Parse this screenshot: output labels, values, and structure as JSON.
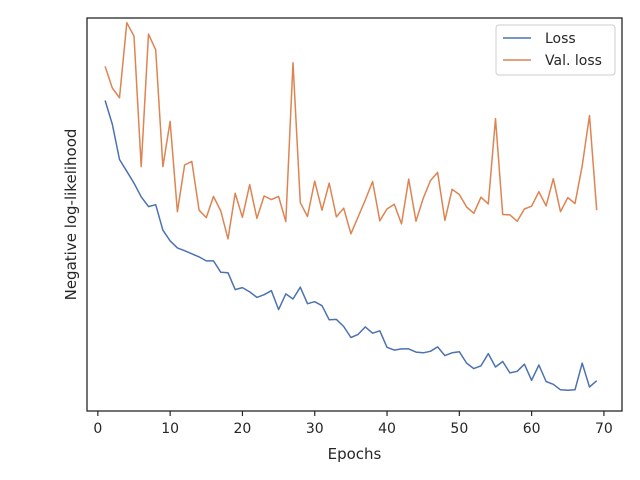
{
  "chart_data": {
    "type": "line",
    "title": "",
    "xlabel": "Epochs",
    "ylabel": "Negative log-likelihood",
    "xlim": [
      -1.5,
      72.5
    ],
    "ylim": [
      0,
      100
    ],
    "xticks": [
      0,
      10,
      20,
      30,
      40,
      50,
      60,
      70
    ],
    "yticks_shown": false,
    "grid": false,
    "legend_position": "top-right",
    "series": [
      {
        "name": "Loss",
        "color": "#4c72b0",
        "x": [
          1,
          2,
          3,
          4,
          5,
          6,
          7,
          8,
          9,
          10,
          11,
          12,
          13,
          14,
          15,
          16,
          17,
          18,
          19,
          20,
          21,
          22,
          23,
          24,
          25,
          26,
          27,
          28,
          29,
          30,
          31,
          32,
          33,
          34,
          35,
          36,
          37,
          38,
          39,
          40,
          41,
          42,
          43,
          44,
          45,
          46,
          47,
          48,
          49,
          50,
          51,
          52,
          53,
          54,
          55,
          56,
          57,
          58,
          59,
          60,
          61,
          62,
          63,
          64,
          65,
          66,
          67,
          68,
          69
        ],
        "y": [
          79,
          73,
          64,
          61,
          58,
          54.5,
          52,
          52.5,
          46,
          43.3,
          41.5,
          40.8,
          40,
          39.2,
          38.2,
          38.2,
          35.3,
          35.2,
          30.9,
          31.4,
          30.3,
          28.9,
          29.6,
          30.6,
          25.8,
          29.8,
          28.5,
          31.5,
          27.3,
          27.8,
          26.8,
          23.2,
          23.3,
          21.5,
          18.7,
          19.5,
          21.4,
          19.8,
          20.4,
          16.2,
          15.5,
          15.8,
          15.8,
          15,
          14.8,
          15.2,
          16.3,
          14.1,
          14.8,
          15.1,
          12.2,
          10.8,
          11.5,
          14.6,
          11.2,
          12.6,
          9.7,
          10.1,
          11.9,
          7.8,
          11.7,
          7.5,
          6.8,
          5.4,
          5.3,
          5.4,
          12.2,
          6.1,
          7.7
        ]
      },
      {
        "name": "Val. loss",
        "color": "#dd8452",
        "x": [
          1,
          2,
          3,
          4,
          5,
          6,
          7,
          8,
          9,
          10,
          11,
          12,
          13,
          14,
          15,
          16,
          17,
          18,
          19,
          20,
          21,
          22,
          23,
          24,
          25,
          26,
          27,
          28,
          29,
          30,
          31,
          32,
          33,
          34,
          35,
          36,
          37,
          38,
          39,
          40,
          41,
          42,
          43,
          44,
          45,
          46,
          47,
          48,
          49,
          50,
          51,
          52,
          53,
          54,
          55,
          56,
          57,
          58,
          59,
          60,
          61,
          62,
          63,
          64,
          65,
          66,
          67,
          68,
          69
        ],
        "y": [
          87.7,
          82.2,
          79.7,
          98.8,
          95.4,
          62.2,
          95.9,
          91.9,
          62.2,
          73.7,
          50.7,
          62.6,
          63.5,
          51.1,
          49.2,
          54.6,
          50.9,
          43.8,
          55.4,
          49.3,
          57.6,
          49,
          54.7,
          53.8,
          54.6,
          48.2,
          88.6,
          53,
          49.5,
          58.5,
          51.1,
          58,
          49.4,
          51.6,
          45.1,
          49.4,
          53.7,
          58.4,
          48.4,
          51.4,
          52.6,
          47.6,
          59,
          48.3,
          54.1,
          58.6,
          60.7,
          48.5,
          56.4,
          55.1,
          51.9,
          50.3,
          54.4,
          52.7,
          74.4,
          50,
          49.9,
          48.3,
          51.4,
          52.1,
          55.8,
          52.2,
          59.1,
          50.7,
          54.3,
          52.8,
          62.4,
          75.2,
          51.1
        ]
      }
    ]
  }
}
